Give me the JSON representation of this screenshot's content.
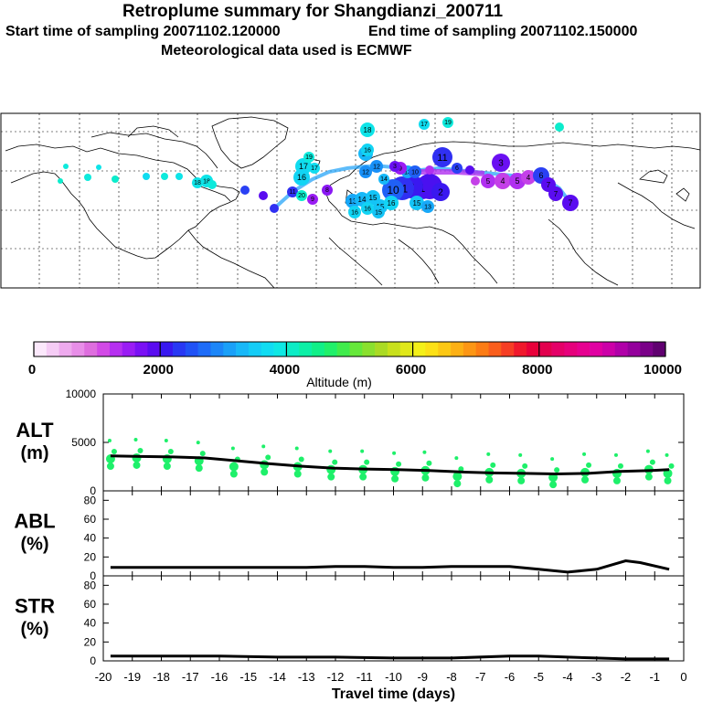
{
  "title": {
    "line1": "Retroplume summary for Shangdianzi_200711",
    "start_label": "Start time of sampling 20071102.120000",
    "end_label": "End time of sampling 20071102.150000",
    "met_label": "Meteorological data used is ECMWF"
  },
  "colorbar": {
    "ticks": [
      0,
      2000,
      4000,
      6000,
      8000,
      10000
    ],
    "tick_labels": [
      "0",
      "2000",
      "4000",
      "6000",
      "8000",
      "10000"
    ],
    "label": "Altitude (m)",
    "colors": [
      "#fbe8fb",
      "#f5ccf5",
      "#eeaaee",
      "#e88ee8",
      "#de6ede",
      "#d24ae6",
      "#b630f0",
      "#9a1cf4",
      "#7a10f4",
      "#5a0cf0",
      "#3818f0",
      "#2838f4",
      "#2052f6",
      "#1e6cf8",
      "#1c86f8",
      "#1aa0f8",
      "#18b8f8",
      "#14ccf6",
      "#10dcf2",
      "#0ee8e4",
      "#0cecc6",
      "#0cf0a6",
      "#10f088",
      "#20f06a",
      "#40ec4c",
      "#66e83a",
      "#8ae02e",
      "#aada24",
      "#c8e01c",
      "#e0e81a",
      "#f4f018",
      "#fce016",
      "#fcc814",
      "#fcb014",
      "#fc9614",
      "#fc7c14",
      "#fa5e1c",
      "#f63e24",
      "#f0182c",
      "#e8003a",
      "#e2004e",
      "#e40068",
      "#e6007c",
      "#e60090",
      "#e000a2",
      "#cc00a8",
      "#b000a8",
      "#94009c",
      "#7a0088",
      "#600070"
    ]
  },
  "map": {
    "markers": [
      {
        "label": "1",
        "color": "#4a10f0"
      },
      {
        "label": "2",
        "color": "#3a18f0"
      },
      {
        "label": "3",
        "color": "#6a10f2"
      },
      {
        "label": "4",
        "color": "#c440e8"
      },
      {
        "label": "5",
        "color": "#b030f0"
      },
      {
        "label": "6",
        "color": "#2a40f4"
      },
      {
        "label": "7",
        "color": "#5a0cf0"
      },
      {
        "label": "8",
        "color": "#8a18f4"
      },
      {
        "label": "9",
        "color": "#9a1cf4"
      },
      {
        "label": "10",
        "color": "#2060f6"
      },
      {
        "label": "11",
        "color": "#3030f2"
      },
      {
        "label": "12",
        "color": "#1890f8"
      },
      {
        "label": "13",
        "color": "#18a8f8"
      },
      {
        "label": "14",
        "color": "#16b8f8"
      },
      {
        "label": "15",
        "color": "#14c4f6"
      },
      {
        "label": "16",
        "color": "#12d4f4"
      },
      {
        "label": "17",
        "color": "#10dcf0"
      },
      {
        "label": "18",
        "color": "#0ee4e8"
      },
      {
        "label": "19",
        "color": "#0eeadc"
      },
      {
        "label": "20",
        "color": "#0ceccc"
      }
    ]
  },
  "chart_data": [
    {
      "type": "scatter",
      "panel": "ALT",
      "ylabel_line1": "ALT",
      "ylabel_line2": "(m)",
      "xlim": [
        -20,
        0
      ],
      "ylim": [
        0,
        10000
      ],
      "yticks": [
        0,
        5000,
        10000
      ],
      "ytick_labels": [
        "0",
        "5000",
        "10000"
      ],
      "series": [
        {
          "name": "mean altitude",
          "x": [
            -19.75,
            -18.7,
            -17.6,
            -16.5,
            -15.4,
            -14.3,
            -13.2,
            -12.1,
            -11.0,
            -9.9,
            -8.8,
            -7.7,
            -6.6,
            -5.5,
            -4.4,
            -3.3,
            -2.2,
            -1.1,
            -0.5
          ],
          "y": [
            3600,
            3550,
            3500,
            3400,
            3100,
            2800,
            2550,
            2350,
            2250,
            2200,
            2100,
            1950,
            1850,
            1800,
            1750,
            1800,
            2000,
            2100,
            2200
          ]
        },
        {
          "name": "cluster altitudes",
          "x": [
            -19.75,
            -18.85,
            -17.8,
            -16.7,
            -15.5,
            -14.45,
            -13.3,
            -12.15,
            -11.05,
            -9.95,
            -8.9,
            -7.8,
            -6.7,
            -5.6,
            -4.5,
            -3.4,
            -2.3,
            -1.2,
            -0.55
          ],
          "y": [
            3300,
            3400,
            3300,
            3100,
            2500,
            2700,
            2500,
            2200,
            2200,
            2000,
            2100,
            1500,
            1900,
            1800,
            1400,
            1900,
            1800,
            2200,
            1800
          ]
        }
      ]
    },
    {
      "type": "line",
      "panel": "ABL",
      "ylabel_line1": "ABL",
      "ylabel_line2": "(%)",
      "xlim": [
        -20,
        0
      ],
      "ylim": [
        0,
        90
      ],
      "yticks": [
        0,
        20,
        40,
        60,
        80
      ],
      "ytick_labels": [
        "0",
        "20",
        "40",
        "60",
        "80"
      ],
      "series": [
        {
          "name": "ABL fraction",
          "x": [
            -19.75,
            -19,
            -18,
            -17,
            -16,
            -15,
            -14,
            -13,
            -12,
            -11,
            -10,
            -9,
            -8,
            -7,
            -6,
            -5,
            -4,
            -3,
            -2,
            -1.5,
            -0.5
          ],
          "y": [
            9,
            9,
            9,
            9,
            9,
            9,
            9,
            9,
            10,
            10,
            9,
            9,
            10,
            10,
            10,
            7,
            4,
            7,
            16,
            14,
            7
          ]
        }
      ]
    },
    {
      "type": "line",
      "panel": "STR",
      "ylabel_line1": "STR",
      "ylabel_line2": "(%)",
      "xlim": [
        -20,
        0
      ],
      "ylim": [
        0,
        90
      ],
      "yticks": [
        0,
        20,
        40,
        60,
        80
      ],
      "ytick_labels": [
        "0",
        "20",
        "40",
        "60",
        "80"
      ],
      "xlabel": "Travel time (days)",
      "xticks": [
        -20,
        -19,
        -18,
        -17,
        -16,
        -15,
        -14,
        -13,
        -12,
        -11,
        -10,
        -9,
        -8,
        -7,
        -6,
        -5,
        -4,
        -3,
        -2,
        -1,
        0
      ],
      "xtick_labels": [
        "-20",
        "-19",
        "-18",
        "-17",
        "-16",
        "-15",
        "-14",
        "-13",
        "-12",
        "-11",
        "-10",
        "-9",
        "-8",
        "-7",
        "-6",
        "-5",
        "-4",
        "-3",
        "-2",
        "-1",
        "0"
      ],
      "series": [
        {
          "name": "STR fraction",
          "x": [
            -19.75,
            -18,
            -16,
            -14,
            -12,
            -10,
            -8,
            -6,
            -5,
            -4,
            -3,
            -2,
            -0.5
          ],
          "y": [
            5,
            5,
            5,
            4,
            4,
            3,
            3,
            5,
            5,
            4,
            3,
            2,
            2
          ]
        }
      ]
    }
  ]
}
